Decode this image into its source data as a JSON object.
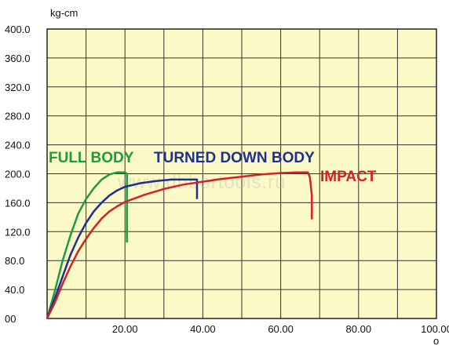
{
  "chart_data": {
    "type": "line",
    "ylabel": "kg-cm",
    "xlabel": "o",
    "xlim": [
      0,
      100
    ],
    "ylim": [
      0,
      400
    ],
    "x_ticks": [
      "",
      "20.00",
      "40.00",
      "60.00",
      "80.00",
      "100.00"
    ],
    "y_ticks": [
      "00",
      "40.0",
      "80.0",
      "120.0",
      "160.0",
      "200.0",
      "240.0",
      "280.0",
      "320.0",
      "360.0",
      "400.0"
    ],
    "grid": true,
    "background": "#fbf9c6",
    "watermark": "www.dhbortools.ru",
    "series": [
      {
        "name": "FULL BODY",
        "color": "#1e9a44",
        "points": [
          [
            0,
            0
          ],
          [
            2,
            38
          ],
          [
            4,
            80
          ],
          [
            6,
            115
          ],
          [
            8,
            145
          ],
          [
            10,
            165
          ],
          [
            12,
            180
          ],
          [
            14,
            192
          ],
          [
            16,
            199
          ],
          [
            18,
            202
          ],
          [
            20,
            202
          ],
          [
            20.5,
            200
          ],
          [
            20.5,
            180
          ],
          [
            20.5,
            105
          ]
        ]
      },
      {
        "name": "TURNED DOWN BODY",
        "color": "#1f2e8f",
        "points": [
          [
            0,
            0
          ],
          [
            2,
            28
          ],
          [
            4,
            58
          ],
          [
            6,
            88
          ],
          [
            8,
            112
          ],
          [
            10,
            132
          ],
          [
            12,
            148
          ],
          [
            14,
            160
          ],
          [
            16,
            170
          ],
          [
            18,
            177
          ],
          [
            20,
            182
          ],
          [
            24,
            187
          ],
          [
            28,
            190
          ],
          [
            32,
            192
          ],
          [
            36,
            192
          ],
          [
            38.5,
            192
          ],
          [
            38.5,
            180
          ],
          [
            38.5,
            165
          ]
        ]
      },
      {
        "name": "IMPACT",
        "color": "#d4202a",
        "points": [
          [
            0,
            0
          ],
          [
            2,
            22
          ],
          [
            4,
            48
          ],
          [
            6,
            72
          ],
          [
            8,
            93
          ],
          [
            10,
            110
          ],
          [
            12,
            125
          ],
          [
            14,
            138
          ],
          [
            16,
            148
          ],
          [
            18,
            155
          ],
          [
            20,
            161
          ],
          [
            25,
            171
          ],
          [
            30,
            179
          ],
          [
            35,
            185
          ],
          [
            40,
            189
          ],
          [
            45,
            193
          ],
          [
            50,
            196
          ],
          [
            55,
            199
          ],
          [
            60,
            201
          ],
          [
            64,
            202
          ],
          [
            67,
            202
          ],
          [
            67.5,
            195
          ],
          [
            68,
            170
          ],
          [
            68,
            137
          ]
        ]
      }
    ]
  }
}
